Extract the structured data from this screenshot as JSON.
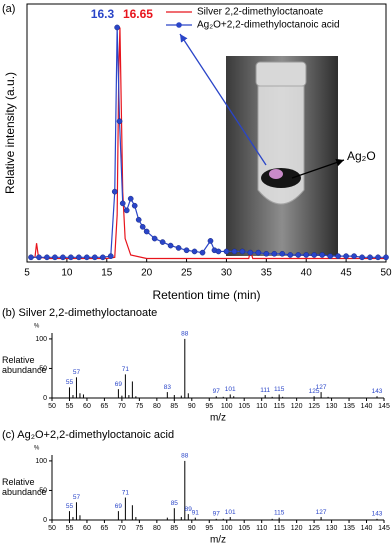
{
  "chart_data": [
    {
      "type": "line",
      "panel_label": "(a)",
      "xlabel": "Retention time (min)",
      "ylabel": "Relative intensity (a.u.)",
      "xlim": [
        5,
        50
      ],
      "xticks": [
        5,
        10,
        15,
        20,
        25,
        30,
        35,
        40,
        45,
        50
      ],
      "ylim": [
        0,
        110
      ],
      "legend": "upper right",
      "series": [
        {
          "name": "Silver 2,2-dimethyloctanoate",
          "color": "#e8141c",
          "marker": "none",
          "x": [
            5.5,
            6,
            6.2,
            6.4,
            6.7,
            7.5,
            10,
            15,
            16,
            16.3,
            16.5,
            16.65,
            16.8,
            17,
            17.3,
            18,
            20,
            25,
            30,
            32.8,
            33,
            33.3,
            35,
            40,
            45,
            50
          ],
          "values": [
            2,
            2,
            8,
            3,
            2,
            1.5,
            1.5,
            1.5,
            2,
            20,
            80,
            100,
            70,
            30,
            10,
            3,
            1.5,
            1.5,
            1.5,
            1.5,
            5,
            1.5,
            1.5,
            1.5,
            1.5,
            1.5
          ]
        },
        {
          "name": "Ag₂O+2,2-dimethyloctanoic acid",
          "color": "#2a45c8",
          "marker": "circle",
          "x": [
            5.5,
            6.5,
            7.5,
            8.5,
            9.5,
            10.5,
            11.5,
            12.5,
            13.5,
            14.5,
            15.5,
            16,
            16.3,
            16.6,
            17,
            17.5,
            18,
            18.5,
            19,
            19.5,
            20,
            21,
            22,
            23,
            24,
            25,
            26,
            27,
            28,
            28.5,
            29,
            30,
            31,
            32,
            33,
            34,
            35,
            36,
            37,
            38,
            39,
            40,
            41,
            42,
            43,
            44,
            45,
            46,
            47,
            48,
            49,
            50
          ],
          "values": [
            2,
            2,
            2,
            2,
            2,
            2,
            2,
            2,
            2,
            2,
            2.5,
            30,
            100,
            60,
            25,
            22,
            27,
            24,
            18,
            15,
            13,
            10,
            8.5,
            7,
            6,
            5,
            4.5,
            4,
            9,
            5,
            4.5,
            4.5,
            4.5,
            4.5,
            4,
            4,
            3.5,
            3.5,
            3.5,
            3,
            3,
            3,
            3,
            3,
            2.5,
            2.5,
            2.5,
            2.5,
            2,
            2,
            2,
            2
          ]
        }
      ],
      "peak_labels": [
        {
          "value": 16.3,
          "series": 1
        },
        {
          "value": 16.65,
          "series": 0
        }
      ],
      "inset_label": "Ag₂O"
    },
    {
      "type": "spectrum",
      "title": "(b) Silver 2,2-dimethyloctanoate",
      "ylabel": [
        "Relative",
        "abundance"
      ],
      "yunit": "%",
      "xlabel": "m/z",
      "xlim": [
        50,
        145
      ],
      "xticks": [
        50,
        55,
        60,
        65,
        70,
        75,
        80,
        85,
        90,
        95,
        100,
        105,
        110,
        115,
        120,
        125,
        130,
        135,
        140,
        145
      ],
      "ylim": [
        0,
        110
      ],
      "yticks": [
        0,
        50,
        100
      ],
      "color": "#000000",
      "label_color": "#2a45c8",
      "peaks": {
        "x": [
          55,
          57,
          69,
          71,
          83,
          88,
          97,
          101,
          111,
          115,
          125,
          127,
          143
        ],
        "values": [
          18,
          35,
          15,
          40,
          10,
          100,
          3,
          6,
          5,
          6,
          3,
          10,
          3
        ]
      },
      "other_peaks": {
        "x": [
          56,
          58,
          59,
          70,
          72,
          73,
          74,
          85,
          87,
          89,
          99,
          102,
          113,
          116,
          129
        ],
        "values": [
          5,
          8,
          6,
          4,
          5,
          28,
          3,
          5,
          4,
          8,
          2,
          3,
          2,
          2,
          2
        ]
      }
    },
    {
      "type": "spectrum",
      "title": "(c) Ag₂O+2,2-dimethyloctanoic acid",
      "ylabel": [
        "Relative",
        "abundance"
      ],
      "yunit": "%",
      "xlabel": "m/z",
      "xlim": [
        50,
        145
      ],
      "xticks": [
        50,
        55,
        60,
        65,
        70,
        75,
        80,
        85,
        90,
        95,
        100,
        105,
        110,
        115,
        120,
        125,
        130,
        135,
        140,
        145
      ],
      "ylim": [
        0,
        110
      ],
      "yticks": [
        0,
        50,
        100
      ],
      "color": "#000000",
      "label_color": "#2a45c8",
      "peaks": {
        "x": [
          55,
          57,
          69,
          71,
          85,
          88,
          89,
          91,
          97,
          101,
          115,
          127,
          143
        ],
        "values": [
          15,
          30,
          15,
          38,
          20,
          100,
          10,
          4,
          2,
          5,
          4,
          5,
          2
        ]
      },
      "other_peaks": {
        "x": [
          56,
          58,
          73,
          74,
          83,
          87,
          99,
          113
        ],
        "values": [
          5,
          8,
          25,
          5,
          4,
          5,
          2,
          2
        ]
      }
    }
  ]
}
